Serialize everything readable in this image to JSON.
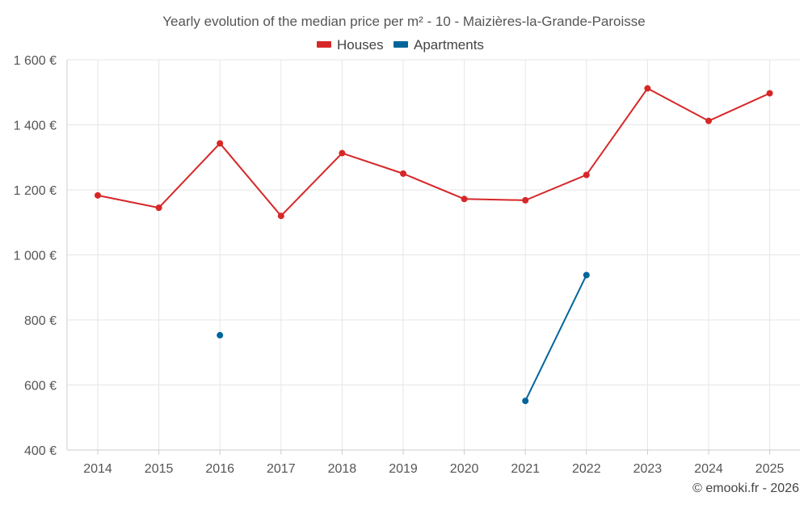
{
  "chart_data": {
    "type": "line",
    "title": "Yearly evolution of the median price per m² - 10 - Maizières-la-Grande-Paroisse",
    "xlabel": "",
    "ylabel": "",
    "categories": [
      "2014",
      "2015",
      "2016",
      "2017",
      "2018",
      "2019",
      "2020",
      "2021",
      "2022",
      "2023",
      "2024",
      "2025"
    ],
    "ylim": [
      400,
      1600
    ],
    "yticks": [
      400,
      600,
      800,
      1000,
      1200,
      1400,
      1600
    ],
    "ytick_labels": [
      "400 €",
      "600 €",
      "800 €",
      "1 000 €",
      "1 200 €",
      "1 400 €",
      "1 600 €"
    ],
    "grid": true,
    "legend_position": "top-center",
    "series": [
      {
        "name": "Houses",
        "color": "#d62728",
        "values": [
          1183,
          1145,
          1343,
          1120,
          1313,
          1250,
          1172,
          1168,
          1246,
          1512,
          1412,
          1497
        ]
      },
      {
        "name": "Apartments",
        "color": "#00659b",
        "values": [
          null,
          null,
          753,
          null,
          null,
          null,
          null,
          551,
          938,
          null,
          null,
          null
        ]
      }
    ]
  },
  "credit": "© emooki.fr - 2026"
}
